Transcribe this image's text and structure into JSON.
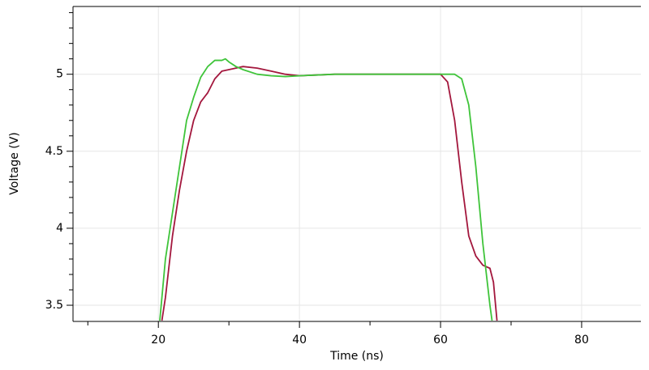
{
  "chart_data": {
    "type": "line",
    "x_label": "Time (ns)",
    "y_label": "Voltage (V)",
    "xlim": [
      7.9,
      88.4
    ],
    "ylim": [
      3.395,
      5.44
    ],
    "xticks": [
      20,
      40,
      60,
      80
    ],
    "yticks": [
      3.5,
      4,
      4.5,
      5
    ],
    "xminorticks": [
      10,
      30,
      50,
      70
    ],
    "yminorticks": [
      3.6,
      3.7,
      3.8,
      3.9,
      4.1,
      4.2,
      4.3,
      4.4,
      4.6,
      4.7,
      4.8,
      4.9,
      5.1,
      5.2,
      5.3,
      5.4
    ],
    "grid": true,
    "series": [
      {
        "color": "#a3173d",
        "x": [
          20.5,
          21,
          22,
          23,
          24,
          25,
          26,
          27,
          28,
          29,
          30,
          31,
          32,
          34,
          36,
          38,
          40,
          45,
          50,
          60,
          61,
          62,
          63,
          64,
          65,
          66,
          67,
          67.5,
          68
        ],
        "values": [
          3.4,
          3.55,
          3.95,
          4.25,
          4.5,
          4.7,
          4.82,
          4.88,
          4.97,
          5.02,
          5.03,
          5.04,
          5.05,
          5.04,
          5.02,
          5.0,
          4.99,
          5.0,
          5.0,
          5.0,
          4.95,
          4.7,
          4.3,
          3.95,
          3.82,
          3.76,
          3.74,
          3.65,
          3.4
        ]
      },
      {
        "color": "#3fc43a",
        "x": [
          20.2,
          21,
          22,
          23,
          24,
          25,
          26,
          27,
          28,
          29,
          29.5,
          30,
          31,
          32,
          34,
          36,
          38,
          40,
          45,
          50,
          60,
          62,
          63,
          64,
          65,
          66,
          67,
          67.3
        ],
        "values": [
          3.4,
          3.8,
          4.1,
          4.4,
          4.7,
          4.85,
          4.98,
          5.05,
          5.09,
          5.09,
          5.1,
          5.08,
          5.05,
          5.03,
          5.0,
          4.99,
          4.985,
          4.99,
          5.0,
          5.0,
          5.0,
          5.0,
          4.97,
          4.8,
          4.4,
          3.9,
          3.5,
          3.4
        ]
      }
    ]
  }
}
